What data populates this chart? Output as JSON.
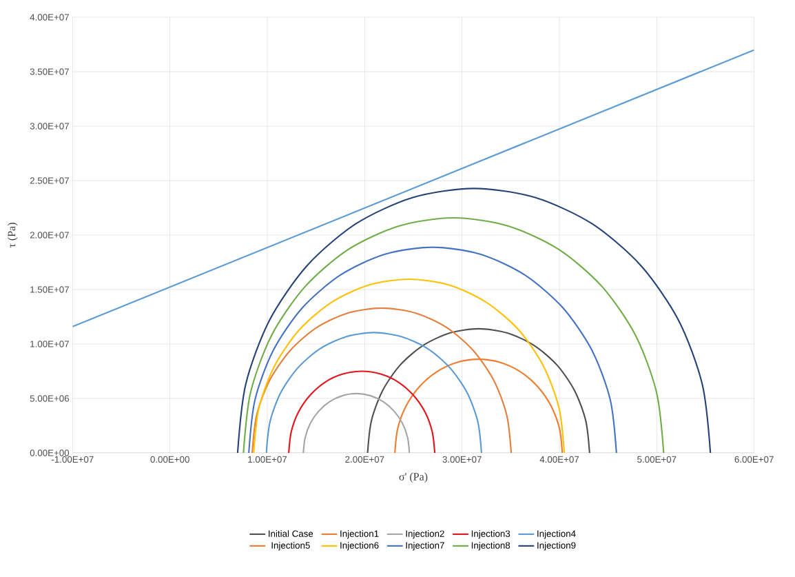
{
  "chart_data": {
    "type": "line",
    "xlabel": "σ' (Pa)",
    "ylabel": "τ (Pa)",
    "xlim": [
      -10000000.0,
      60000000.0
    ],
    "ylim": [
      0,
      40000000.0
    ],
    "xticks": [
      {
        "value": -10000000.0,
        "label": "-1.00E+07"
      },
      {
        "value": 0,
        "label": "0.00E+00"
      },
      {
        "value": 10000000.0,
        "label": "1.00E+07"
      },
      {
        "value": 20000000.0,
        "label": "2.00E+07"
      },
      {
        "value": 30000000.0,
        "label": "3.00E+07"
      },
      {
        "value": 40000000.0,
        "label": "4.00E+07"
      },
      {
        "value": 50000000.0,
        "label": "5.00E+07"
      },
      {
        "value": 60000000.0,
        "label": "6.00E+07"
      }
    ],
    "yticks": [
      {
        "value": 0,
        "label": "0.00E+00"
      },
      {
        "value": 5000000.0,
        "label": "5.00E+06"
      },
      {
        "value": 10000000.0,
        "label": "1.00E+07"
      },
      {
        "value": 15000000.0,
        "label": "1.50E+07"
      },
      {
        "value": 20000000.0,
        "label": "2.00E+07"
      },
      {
        "value": 25000000.0,
        "label": "2.50E+07"
      },
      {
        "value": 30000000.0,
        "label": "3.00E+07"
      },
      {
        "value": 35000000.0,
        "label": "3.50E+07"
      },
      {
        "value": 40000000.0,
        "label": "4.00E+07"
      }
    ],
    "grid": true,
    "legend": "bottom",
    "marker": "none",
    "line_style": "solid",
    "series": [
      {
        "name": "Initial Case",
        "color": "#505050",
        "x": [
          43100000.0,
          42710000.0,
          41570000.0,
          39760000.0,
          37400000.0,
          34650000.0,
          31700000.0,
          28750000.0,
          26000000.0,
          23640000.0,
          21830000.0,
          20690000.0,
          20300000.0
        ],
        "values": [
          0,
          2950000.0,
          5700000.0,
          8060000.0,
          9870000.0,
          11010000.0,
          11400000.0,
          11010000.0,
          9870000.0,
          8060000.0,
          5700000.0,
          2950000.0,
          0
        ]
      },
      {
        "name": "Injection1",
        "color": "#ed7d31",
        "x": [
          40300000.0,
          40010000.0,
          39150000.0,
          37780000.0,
          36000000.0,
          33930000.0,
          31700000.0,
          29470000.0,
          27400000.0,
          25620000.0,
          24250000.0,
          23390000.0,
          23100000.0
        ],
        "values": [
          0,
          2230000.0,
          4300000.0,
          6080000.0,
          7450000.0,
          8310000.0,
          8600000.0,
          8310000.0,
          7450000.0,
          6080000.0,
          4300000.0,
          2230000.0,
          0
        ]
      },
      {
        "name": "Injection2",
        "color": "#a5a5a5",
        "x": [
          24600000.0,
          24410000.0,
          23870000.0,
          23000000.0,
          21880000.0,
          20560000.0,
          19150000.0,
          17740000.0,
          16430000.0,
          15300000.0,
          14430000.0,
          13890000.0,
          13700000.0
        ],
        "values": [
          0,
          1410000.0,
          2730000.0,
          3850000.0,
          4720000.0,
          5260000.0,
          5450000.0,
          5260000.0,
          4720000.0,
          3850000.0,
          2730000.0,
          1410000.0,
          0
        ]
      },
      {
        "name": "Injection3",
        "color": "#e2141c",
        "x": [
          27200000.0,
          26940000.0,
          26200000.0,
          25000000.0,
          23450000.0,
          21640000.0,
          19700000.0,
          17760000.0,
          15950000.0,
          14400000.0,
          13200000.0,
          12460000.0,
          12200000.0
        ],
        "values": [
          0,
          1940000.0,
          3750000.0,
          5300000.0,
          6500000.0,
          7240000.0,
          7500000.0,
          7240000.0,
          6500000.0,
          5300000.0,
          3750000.0,
          1940000.0,
          0
        ]
      },
      {
        "name": "Injection4",
        "color": "#5b9bd5",
        "x": [
          32000000.0,
          31620000.0,
          30520000.0,
          28760000.0,
          26480000.0,
          23810000.0,
          20950000.0,
          18090000.0,
          15420000.0,
          13140000.0,
          11380000.0,
          10280000.0,
          9900000.0
        ],
        "values": [
          0,
          2860000.0,
          5530000.0,
          7810000.0,
          9570000.0,
          10670000.0,
          11050000.0,
          10670000.0,
          9570000.0,
          7810000.0,
          5530000.0,
          2860000.0,
          0
        ]
      },
      {
        "name": "Injection5",
        "color": "#e3803f",
        "x": [
          35050000.0,
          34600000.0,
          33270000.0,
          31150000.0,
          28400000.0,
          25190000.0,
          21750000.0,
          18310000.0,
          15100000.0,
          12350000.0,
          10230000.0,
          8900000.0,
          8450000.0
        ],
        "values": [
          0,
          3440000.0,
          6650000.0,
          9400000.0,
          11520000.0,
          12850000.0,
          13300000.0,
          12850000.0,
          11520000.0,
          9400000.0,
          6650000.0,
          3440000.0,
          0
        ]
      },
      {
        "name": "Injection6",
        "color": "#ffc000",
        "x": [
          40500000.0,
          39960000.0,
          38360000.0,
          35830000.0,
          32530000.0,
          28680000.0,
          24550000.0,
          20420000.0,
          16570000.0,
          13270000.0,
          10740000.0,
          9140000.0,
          8600000.0
        ],
        "values": [
          0,
          4130000.0,
          7980000.0,
          11280000.0,
          13810000.0,
          15410000.0,
          15950000.0,
          15410000.0,
          13810000.0,
          11280000.0,
          7980000.0,
          4130000.0,
          0
        ]
      },
      {
        "name": "Injection7",
        "color": "#4472c4",
        "x": [
          45860000.0,
          45220000.0,
          43330000.0,
          40330000.0,
          36420000.0,
          31870000.0,
          26980000.0,
          22090000.0,
          17540000.0,
          13630000.0,
          10630000.0,
          8740000.0,
          8100000.0
        ],
        "values": [
          0,
          4890000.0,
          9440000.0,
          13350000.0,
          16350000.0,
          18240000.0,
          18880000.0,
          18240000.0,
          16350000.0,
          13350000.0,
          9440000.0,
          4890000.0,
          0
        ]
      },
      {
        "name": "Injection8",
        "color": "#70ad47",
        "x": [
          50710000.0,
          49970000.0,
          47820000.0,
          44390000.0,
          39920000.0,
          34710000.0,
          29130000.0,
          23550000.0,
          18340000.0,
          13870000.0,
          10440000.0,
          8290000.0,
          7550000.0
        ],
        "values": [
          0,
          5580000.0,
          10790000.0,
          15260000.0,
          18690000.0,
          20840000.0,
          21580000.0,
          20840000.0,
          18690000.0,
          15260000.0,
          10790000.0,
          5580000.0,
          0
        ]
      },
      {
        "name": "Injection9",
        "color": "#264478",
        "x": [
          55510000.0,
          54680000.0,
          52260000.0,
          48400000.0,
          43370000.0,
          37510000.0,
          31230000.0,
          24950000.0,
          19090000.0,
          14060000.0,
          10200000.0,
          7780000.0,
          6950000.0
        ],
        "values": [
          0,
          6280000.0,
          12140000.0,
          17170000.0,
          21030000.0,
          23450000.0,
          24280000.0,
          23450000.0,
          21030000.0,
          17170000.0,
          12140000.0,
          6280000.0,
          0
        ]
      },
      {
        "color": "#5b9bd5",
        "x": [
          -10000000.0,
          60000000.0
        ],
        "values": [
          11600000.0,
          37000000.0
        ]
      }
    ]
  }
}
